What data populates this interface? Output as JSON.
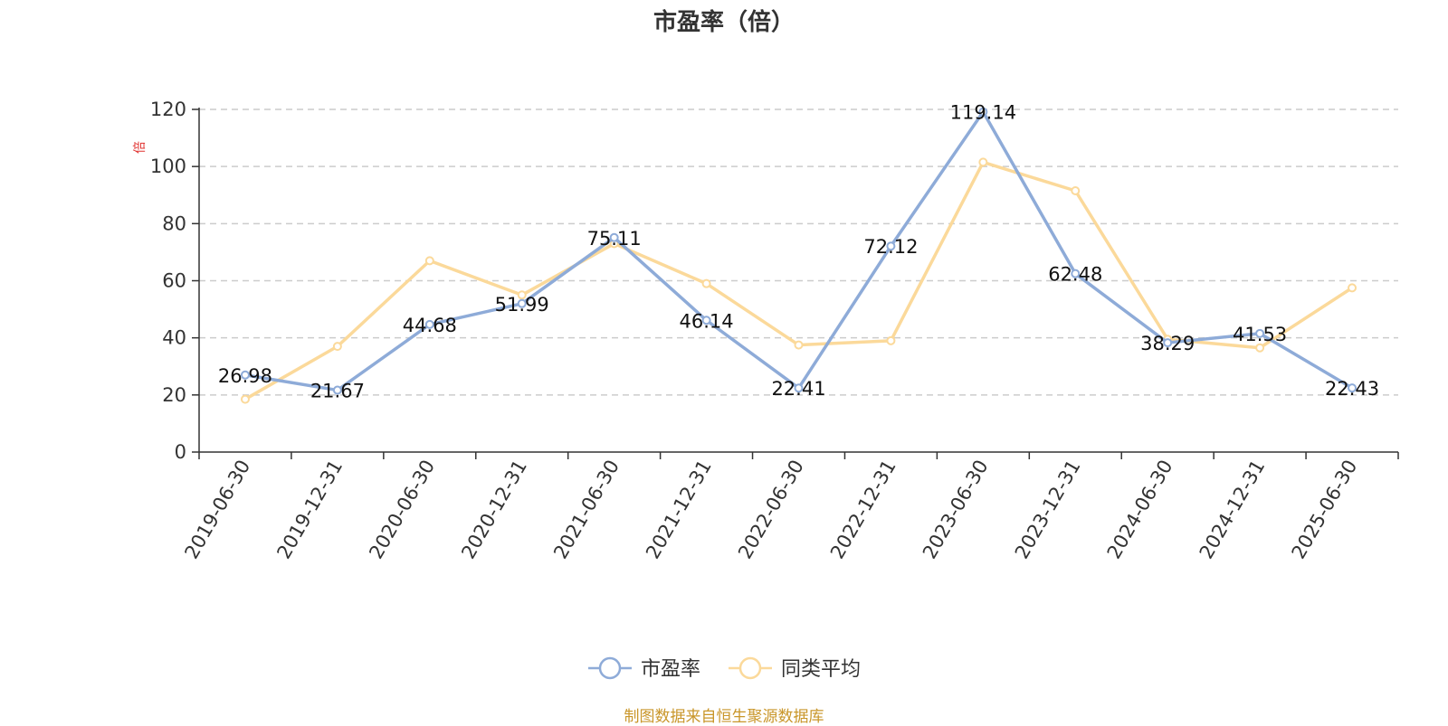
{
  "title": "市盈率（倍）",
  "source_note": "制图数据来自恒生聚源数据库",
  "chart_data": {
    "type": "line",
    "title": "市盈率（倍）",
    "ylabel": "倍",
    "ylim": [
      0,
      120
    ],
    "yticks": [
      0,
      20,
      40,
      60,
      80,
      100,
      120
    ],
    "grid": true,
    "legend_position": "bottom",
    "categories": [
      "2019-06-30",
      "2019-12-31",
      "2020-06-30",
      "2020-12-31",
      "2021-06-30",
      "2021-12-31",
      "2022-06-30",
      "2022-12-31",
      "2023-06-30",
      "2023-12-31",
      "2024-06-30",
      "2024-12-31",
      "2025-06-30"
    ],
    "series": [
      {
        "name": "市盈率",
        "color": "#8eabd8",
        "values": [
          26.98,
          21.67,
          44.68,
          51.99,
          75.11,
          46.14,
          22.41,
          72.12,
          119.14,
          62.48,
          38.29,
          41.53,
          22.43
        ],
        "labels": [
          "26.98",
          "21.67",
          "44.68",
          "51.99",
          "75.11",
          "46.14",
          "22.41",
          "72.12",
          "119.14",
          "62.48",
          "38.29",
          "41.53",
          "22.43"
        ]
      },
      {
        "name": "同类平均",
        "color": "#fbd99a",
        "values": [
          18.5,
          37,
          67,
          55,
          73,
          59,
          37.5,
          39,
          101.5,
          91.5,
          39.5,
          36.5,
          57.5
        ]
      }
    ]
  },
  "colors": {
    "unit_label": "#e0322f",
    "axis": "#333333",
    "grid": "#cccccc"
  }
}
